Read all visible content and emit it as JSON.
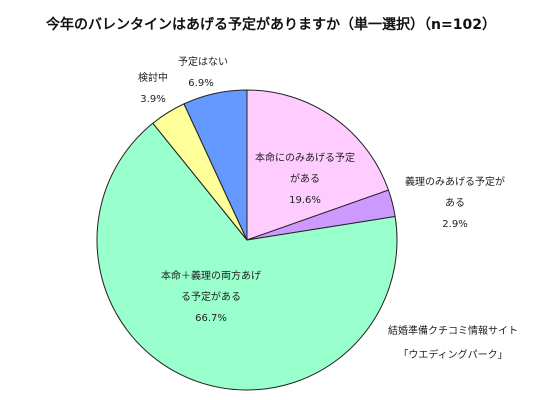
{
  "chart_data": {
    "type": "pie",
    "title": "今年のバレンタインはあげる予定がありますか（単一選択）（n=102）",
    "slices": [
      {
        "label_lines": [
          "本命にのみあげる予定",
          "がある"
        ],
        "value": 19.6,
        "value_text": "19.6%",
        "color": "#FFCCFF"
      },
      {
        "label_lines": [
          "義理のみあげる予定が",
          "ある"
        ],
        "value": 2.9,
        "value_text": "2.9%",
        "color": "#CC99FF"
      },
      {
        "label_lines": [
          "本命＋義理の両方あげ",
          "る予定がある"
        ],
        "value": 66.7,
        "value_text": "66.7%",
        "color": "#99FFCC"
      },
      {
        "label_lines": [
          "検討中"
        ],
        "value": 3.9,
        "value_text": "3.9%",
        "color": "#FFFF99"
      },
      {
        "label_lines": [
          "予定はない"
        ],
        "value": 6.9,
        "value_text": "6.9%",
        "color": "#6699FF"
      }
    ],
    "start_angle_deg": 0,
    "direction": "clockwise",
    "legend": "none",
    "data_labels": "on-chart"
  },
  "source_note": {
    "line1": "結婚準備クチコミ情報サイト",
    "line2": "「ウエディングパーク」"
  }
}
